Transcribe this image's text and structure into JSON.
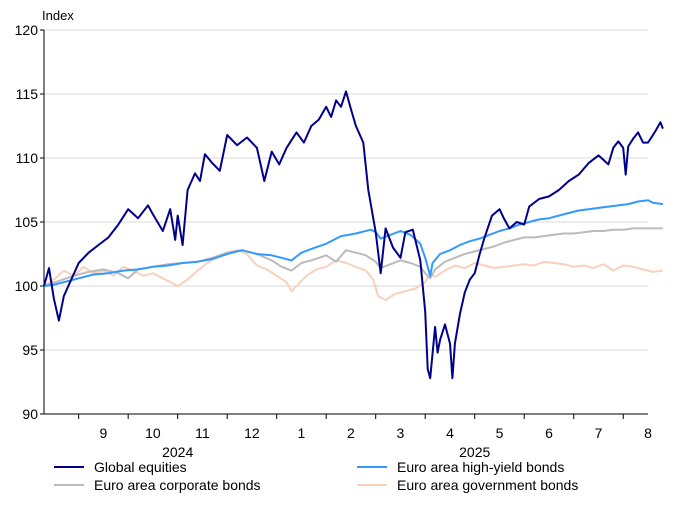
{
  "chart_data": {
    "type": "line",
    "ylabel": "Index",
    "ylim": [
      90,
      120
    ],
    "yticks": [
      90,
      95,
      100,
      105,
      110,
      115,
      120
    ],
    "x_unit": "months since 2024-08-01",
    "xlim": [
      0.3,
      12.5
    ],
    "months": [
      {
        "label": "9",
        "x": 1.5
      },
      {
        "label": "10",
        "x": 2.5
      },
      {
        "label": "11",
        "x": 3.5
      },
      {
        "label": "12",
        "x": 4.5
      },
      {
        "label": "1",
        "x": 5.5
      },
      {
        "label": "2",
        "x": 6.5
      },
      {
        "label": "3",
        "x": 7.5
      },
      {
        "label": "4",
        "x": 8.5
      },
      {
        "label": "5",
        "x": 9.5
      },
      {
        "label": "6",
        "x": 10.5
      },
      {
        "label": "7",
        "x": 11.5
      },
      {
        "label": "8",
        "x": 12.5
      }
    ],
    "years": [
      {
        "label": "2024",
        "x": 3.0
      },
      {
        "label": "2025",
        "x": 9.0
      }
    ],
    "series": [
      {
        "name": "Global equities",
        "color": "#00008b",
        "points": [
          [
            0.3,
            100.0
          ],
          [
            0.4,
            101.4
          ],
          [
            0.5,
            99.0
          ],
          [
            0.6,
            97.3
          ],
          [
            0.7,
            99.2
          ],
          [
            0.85,
            100.5
          ],
          [
            1.0,
            101.8
          ],
          [
            1.2,
            102.6
          ],
          [
            1.4,
            103.2
          ],
          [
            1.6,
            103.8
          ],
          [
            1.8,
            104.8
          ],
          [
            2.0,
            106.0
          ],
          [
            2.2,
            105.3
          ],
          [
            2.4,
            106.3
          ],
          [
            2.5,
            105.6
          ],
          [
            2.7,
            104.3
          ],
          [
            2.85,
            106.0
          ],
          [
            2.95,
            103.6
          ],
          [
            3.0,
            105.5
          ],
          [
            3.1,
            103.2
          ],
          [
            3.2,
            107.5
          ],
          [
            3.35,
            108.8
          ],
          [
            3.45,
            108.2
          ],
          [
            3.55,
            110.3
          ],
          [
            3.7,
            109.6
          ],
          [
            3.85,
            109.0
          ],
          [
            4.0,
            111.8
          ],
          [
            4.2,
            111.0
          ],
          [
            4.4,
            111.6
          ],
          [
            4.6,
            110.8
          ],
          [
            4.75,
            108.2
          ],
          [
            4.9,
            110.5
          ],
          [
            5.05,
            109.5
          ],
          [
            5.2,
            110.8
          ],
          [
            5.4,
            112.0
          ],
          [
            5.55,
            111.2
          ],
          [
            5.7,
            112.5
          ],
          [
            5.85,
            113.0
          ],
          [
            6.0,
            114.0
          ],
          [
            6.1,
            113.2
          ],
          [
            6.2,
            114.5
          ],
          [
            6.3,
            114.0
          ],
          [
            6.4,
            115.2
          ],
          [
            6.5,
            113.8
          ],
          [
            6.6,
            112.5
          ],
          [
            6.75,
            111.2
          ],
          [
            6.85,
            107.5
          ],
          [
            7.0,
            104.2
          ],
          [
            7.1,
            101.0
          ],
          [
            7.2,
            104.5
          ],
          [
            7.35,
            103.0
          ],
          [
            7.5,
            102.2
          ],
          [
            7.6,
            104.2
          ],
          [
            7.75,
            104.4
          ],
          [
            7.9,
            102.0
          ],
          [
            8.0,
            98.0
          ],
          [
            8.05,
            93.5
          ],
          [
            8.1,
            92.8
          ],
          [
            8.2,
            96.8
          ],
          [
            8.25,
            94.8
          ],
          [
            8.3,
            95.8
          ],
          [
            8.4,
            97.0
          ],
          [
            8.5,
            95.5
          ],
          [
            8.55,
            92.8
          ],
          [
            8.6,
            95.5
          ],
          [
            8.7,
            97.8
          ],
          [
            8.8,
            99.5
          ],
          [
            8.9,
            100.5
          ],
          [
            9.0,
            101.0
          ],
          [
            9.1,
            102.5
          ],
          [
            9.2,
            103.8
          ],
          [
            9.35,
            105.5
          ],
          [
            9.5,
            106.0
          ],
          [
            9.6,
            105.2
          ],
          [
            9.7,
            104.5
          ],
          [
            9.85,
            105.0
          ],
          [
            10.0,
            104.8
          ],
          [
            10.1,
            106.2
          ],
          [
            10.3,
            106.8
          ],
          [
            10.5,
            107.0
          ],
          [
            10.7,
            107.5
          ],
          [
            10.9,
            108.2
          ],
          [
            11.1,
            108.7
          ],
          [
            11.3,
            109.6
          ],
          [
            11.5,
            110.2
          ],
          [
            11.7,
            109.5
          ],
          [
            11.8,
            110.8
          ],
          [
            11.9,
            111.3
          ],
          [
            12.0,
            110.8
          ],
          [
            12.05,
            108.7
          ],
          [
            12.1,
            110.9
          ],
          [
            12.2,
            111.5
          ],
          [
            12.3,
            112.0
          ],
          [
            12.4,
            111.2
          ],
          [
            12.5,
            111.2
          ],
          [
            12.55,
            111.5
          ],
          [
            12.65,
            112.1
          ],
          [
            12.75,
            112.8
          ],
          [
            12.8,
            112.3
          ]
        ]
      },
      {
        "name": "Euro area high-yield bonds",
        "color": "#3399ff",
        "points": [
          [
            0.3,
            100.0
          ],
          [
            0.5,
            100.1
          ],
          [
            0.8,
            100.4
          ],
          [
            1.0,
            100.6
          ],
          [
            1.3,
            100.9
          ],
          [
            1.6,
            101.0
          ],
          [
            1.9,
            101.2
          ],
          [
            2.2,
            101.3
          ],
          [
            2.5,
            101.5
          ],
          [
            2.8,
            101.6
          ],
          [
            3.1,
            101.8
          ],
          [
            3.4,
            101.9
          ],
          [
            3.7,
            102.1
          ],
          [
            4.0,
            102.5
          ],
          [
            4.3,
            102.8
          ],
          [
            4.6,
            102.5
          ],
          [
            4.9,
            102.4
          ],
          [
            5.1,
            102.2
          ],
          [
            5.3,
            102.0
          ],
          [
            5.5,
            102.6
          ],
          [
            5.7,
            102.9
          ],
          [
            6.0,
            103.3
          ],
          [
            6.3,
            103.9
          ],
          [
            6.6,
            104.1
          ],
          [
            6.9,
            104.4
          ],
          [
            7.0,
            104.2
          ],
          [
            7.1,
            103.7
          ],
          [
            7.3,
            104.0
          ],
          [
            7.5,
            104.3
          ],
          [
            7.7,
            104.0
          ],
          [
            7.9,
            103.3
          ],
          [
            8.0,
            102.2
          ],
          [
            8.05,
            101.5
          ],
          [
            8.1,
            100.8
          ],
          [
            8.15,
            101.8
          ],
          [
            8.3,
            102.5
          ],
          [
            8.5,
            102.8
          ],
          [
            8.7,
            103.2
          ],
          [
            8.9,
            103.5
          ],
          [
            9.1,
            103.7
          ],
          [
            9.3,
            104.0
          ],
          [
            9.5,
            104.3
          ],
          [
            9.7,
            104.5
          ],
          [
            9.9,
            104.8
          ],
          [
            10.1,
            105.0
          ],
          [
            10.3,
            105.2
          ],
          [
            10.5,
            105.3
          ],
          [
            10.7,
            105.5
          ],
          [
            10.9,
            105.7
          ],
          [
            11.1,
            105.9
          ],
          [
            11.3,
            106.0
          ],
          [
            11.5,
            106.1
          ],
          [
            11.7,
            106.2
          ],
          [
            11.9,
            106.3
          ],
          [
            12.1,
            106.4
          ],
          [
            12.3,
            106.6
          ],
          [
            12.5,
            106.7
          ],
          [
            12.6,
            106.5
          ],
          [
            12.8,
            106.4
          ]
        ]
      },
      {
        "name": "Euro area corporate bonds",
        "color": "#bbbbbb",
        "points": [
          [
            0.3,
            100.0
          ],
          [
            0.6,
            100.4
          ],
          [
            0.9,
            100.8
          ],
          [
            1.2,
            101.1
          ],
          [
            1.5,
            101.3
          ],
          [
            1.8,
            101.0
          ],
          [
            2.0,
            100.6
          ],
          [
            2.2,
            101.3
          ],
          [
            2.5,
            101.5
          ],
          [
            2.8,
            101.7
          ],
          [
            3.1,
            101.8
          ],
          [
            3.4,
            101.9
          ],
          [
            3.7,
            102.2
          ],
          [
            4.0,
            102.6
          ],
          [
            4.3,
            102.8
          ],
          [
            4.6,
            102.5
          ],
          [
            4.9,
            102.0
          ],
          [
            5.1,
            101.5
          ],
          [
            5.3,
            101.2
          ],
          [
            5.5,
            101.8
          ],
          [
            5.7,
            102.0
          ],
          [
            6.0,
            102.4
          ],
          [
            6.2,
            101.9
          ],
          [
            6.4,
            102.8
          ],
          [
            6.6,
            102.6
          ],
          [
            6.8,
            102.4
          ],
          [
            7.0,
            101.9
          ],
          [
            7.1,
            101.4
          ],
          [
            7.3,
            101.7
          ],
          [
            7.5,
            102.0
          ],
          [
            7.7,
            101.8
          ],
          [
            7.9,
            101.5
          ],
          [
            8.0,
            101.0
          ],
          [
            8.1,
            100.6
          ],
          [
            8.2,
            101.3
          ],
          [
            8.4,
            101.9
          ],
          [
            8.6,
            102.2
          ],
          [
            8.8,
            102.5
          ],
          [
            9.0,
            102.7
          ],
          [
            9.2,
            102.9
          ],
          [
            9.4,
            103.1
          ],
          [
            9.6,
            103.4
          ],
          [
            9.8,
            103.6
          ],
          [
            10.0,
            103.8
          ],
          [
            10.2,
            103.8
          ],
          [
            10.4,
            103.9
          ],
          [
            10.6,
            104.0
          ],
          [
            10.8,
            104.1
          ],
          [
            11.0,
            104.1
          ],
          [
            11.2,
            104.2
          ],
          [
            11.4,
            104.3
          ],
          [
            11.6,
            104.3
          ],
          [
            11.8,
            104.4
          ],
          [
            12.0,
            104.4
          ],
          [
            12.2,
            104.5
          ],
          [
            12.4,
            104.5
          ],
          [
            12.6,
            104.5
          ],
          [
            12.8,
            104.5
          ]
        ]
      },
      {
        "name": "Euro area government bonds",
        "color": "#f9d0bd",
        "points": [
          [
            0.3,
            100.0
          ],
          [
            0.5,
            100.5
          ],
          [
            0.7,
            101.2
          ],
          [
            0.9,
            100.8
          ],
          [
            1.1,
            101.5
          ],
          [
            1.3,
            101.0
          ],
          [
            1.5,
            101.2
          ],
          [
            1.7,
            100.8
          ],
          [
            1.9,
            101.5
          ],
          [
            2.1,
            101.2
          ],
          [
            2.3,
            100.8
          ],
          [
            2.5,
            101.0
          ],
          [
            2.7,
            100.6
          ],
          [
            2.9,
            100.2
          ],
          [
            3.0,
            100.0
          ],
          [
            3.2,
            100.5
          ],
          [
            3.4,
            101.2
          ],
          [
            3.6,
            101.8
          ],
          [
            3.8,
            102.3
          ],
          [
            4.0,
            102.6
          ],
          [
            4.2,
            102.8
          ],
          [
            4.4,
            102.5
          ],
          [
            4.6,
            101.6
          ],
          [
            4.8,
            101.3
          ],
          [
            5.0,
            100.8
          ],
          [
            5.2,
            100.3
          ],
          [
            5.3,
            99.6
          ],
          [
            5.45,
            100.2
          ],
          [
            5.6,
            100.8
          ],
          [
            5.8,
            101.3
          ],
          [
            6.0,
            101.5
          ],
          [
            6.2,
            102.0
          ],
          [
            6.4,
            101.8
          ],
          [
            6.6,
            101.5
          ],
          [
            6.8,
            101.2
          ],
          [
            6.95,
            100.5
          ],
          [
            7.05,
            99.2
          ],
          [
            7.2,
            98.9
          ],
          [
            7.4,
            99.4
          ],
          [
            7.6,
            99.6
          ],
          [
            7.8,
            99.8
          ],
          [
            8.0,
            100.3
          ],
          [
            8.1,
            101.0
          ],
          [
            8.2,
            100.7
          ],
          [
            8.4,
            101.2
          ],
          [
            8.6,
            101.6
          ],
          [
            8.8,
            101.4
          ],
          [
            9.0,
            101.8
          ],
          [
            9.2,
            101.6
          ],
          [
            9.4,
            101.4
          ],
          [
            9.6,
            101.5
          ],
          [
            9.8,
            101.6
          ],
          [
            10.0,
            101.7
          ],
          [
            10.2,
            101.6
          ],
          [
            10.4,
            101.9
          ],
          [
            10.6,
            101.8
          ],
          [
            10.8,
            101.7
          ],
          [
            11.0,
            101.5
          ],
          [
            11.2,
            101.6
          ],
          [
            11.4,
            101.4
          ],
          [
            11.6,
            101.7
          ],
          [
            11.8,
            101.2
          ],
          [
            12.0,
            101.6
          ],
          [
            12.2,
            101.5
          ],
          [
            12.4,
            101.3
          ],
          [
            12.6,
            101.1
          ],
          [
            12.8,
            101.2
          ]
        ]
      }
    ]
  }
}
